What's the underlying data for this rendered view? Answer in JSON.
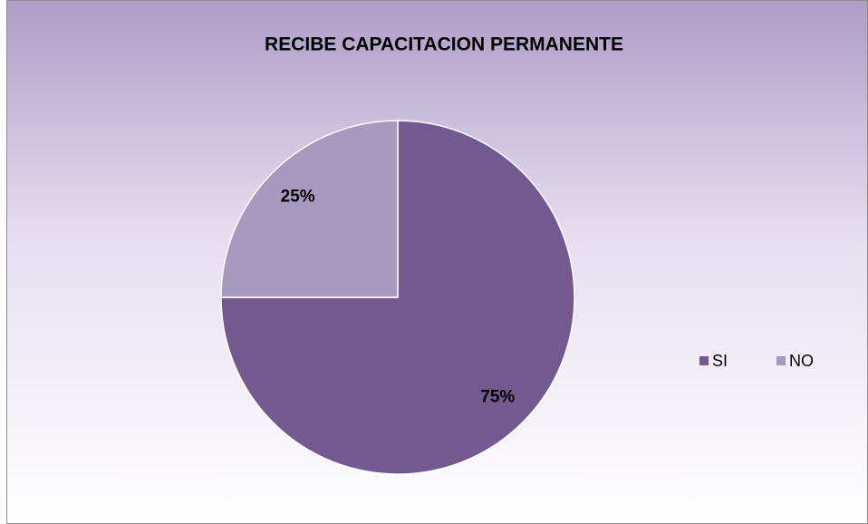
{
  "chart_data": {
    "type": "pie",
    "title": "RECIBE CAPACITACION PERMANENTE",
    "categories": [
      "SI",
      "NO"
    ],
    "values": [
      75,
      25
    ],
    "value_labels": [
      "75%",
      "25%"
    ],
    "colors": [
      "#725990",
      "#a899bf"
    ],
    "legend": "right"
  }
}
